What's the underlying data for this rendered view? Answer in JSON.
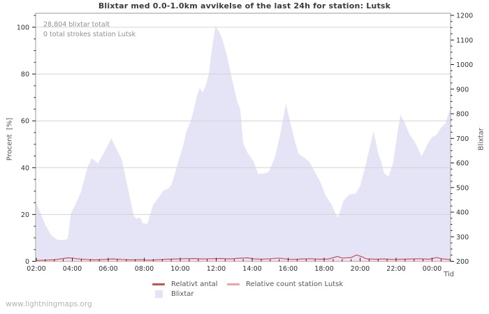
{
  "title": "Blixtar med 0.0-1.0km avvikelse of the last 24h for station: Lutsk",
  "annotations": {
    "total": "28,804 blixtar totalt",
    "station": "0 total strokes station Lutsk"
  },
  "watermark": "www.lightningmaps.org",
  "colors": {
    "background": "#ffffff",
    "area": "#e4e4f6",
    "relative_line": "#cb4f54",
    "station_line": "#f2a2a2",
    "grid": "#d4d4d4",
    "frame": "#9a9a9a",
    "tick": "#1a1a1a",
    "tick_label": "#2e2e2e",
    "muted_text": "#8f8f8f"
  },
  "legend": {
    "relative": {
      "label": "Relativt antal",
      "color": "#cb4f54"
    },
    "station": {
      "label": "Relative count station Lutsk",
      "color": "#f2a2a2"
    },
    "blixtar": {
      "label": "Blixtar",
      "color": "#e4e4f6"
    }
  },
  "chart_data": {
    "type": "area",
    "title": "Blixtar med 0.0-1.0km avvikelse of the last 24h for station: Lutsk",
    "xlabel": "Tid",
    "x_axis": {
      "label": "Tid",
      "start_time": "02:00",
      "range_minutes": [
        0,
        1380
      ],
      "major_tick_minutes": 120,
      "minor_tick_minutes": 30,
      "tick_labels": [
        "02:00",
        "04:00",
        "06:00",
        "08:00",
        "10:00",
        "12:00",
        "14:00",
        "16:00",
        "18:00",
        "20:00",
        "22:00",
        "00:00"
      ]
    },
    "y_left_axis": {
      "label": "Procent  [%]",
      "ticks": [
        0,
        20,
        40,
        60,
        80,
        100
      ],
      "minor_step": 5,
      "range": [
        0,
        106
      ]
    },
    "y_right_axis": {
      "label": "Blixtar",
      "ticks": [
        200,
        300,
        400,
        500,
        600,
        700,
        800,
        900,
        1000,
        1100,
        1200
      ],
      "minor_step": 25,
      "range": [
        200,
        1208
      ]
    },
    "grid": "horizontal at left-axis majors",
    "legend_position": "below plot",
    "series": [
      {
        "name": "Blixtar",
        "type": "area",
        "axis": "right",
        "color": "#e4e4f6",
        "points": [
          [
            0,
            438
          ],
          [
            10,
            408
          ],
          [
            30,
            348
          ],
          [
            50,
            305
          ],
          [
            70,
            288
          ],
          [
            90,
            286
          ],
          [
            105,
            291
          ],
          [
            115,
            395
          ],
          [
            130,
            430
          ],
          [
            150,
            486
          ],
          [
            170,
            580
          ],
          [
            185,
            620
          ],
          [
            205,
            598
          ],
          [
            225,
            640
          ],
          [
            250,
            700
          ],
          [
            270,
            650
          ],
          [
            285,
            614
          ],
          [
            305,
            500
          ],
          [
            325,
            385
          ],
          [
            335,
            372
          ],
          [
            345,
            380
          ],
          [
            355,
            355
          ],
          [
            370,
            352
          ],
          [
            390,
            430
          ],
          [
            410,
            463
          ],
          [
            425,
            489
          ],
          [
            440,
            495
          ],
          [
            450,
            510
          ],
          [
            460,
            546
          ],
          [
            475,
            612
          ],
          [
            490,
            670
          ],
          [
            500,
            727
          ],
          [
            515,
            770
          ],
          [
            525,
            815
          ],
          [
            535,
            870
          ],
          [
            545,
            905
          ],
          [
            555,
            886
          ],
          [
            565,
            915
          ],
          [
            575,
            962
          ],
          [
            585,
            1058
          ],
          [
            597,
            1155
          ],
          [
            610,
            1134
          ],
          [
            620,
            1105
          ],
          [
            635,
            1040
          ],
          [
            650,
            955
          ],
          [
            670,
            850
          ],
          [
            680,
            820
          ],
          [
            690,
            680
          ],
          [
            705,
            640
          ],
          [
            725,
            606
          ],
          [
            740,
            555
          ],
          [
            760,
            557
          ],
          [
            775,
            562
          ],
          [
            795,
            620
          ],
          [
            810,
            696
          ],
          [
            825,
            790
          ],
          [
            832,
            842
          ],
          [
            845,
            775
          ],
          [
            860,
            700
          ],
          [
            875,
            636
          ],
          [
            895,
            620
          ],
          [
            910,
            606
          ],
          [
            930,
            562
          ],
          [
            950,
            515
          ],
          [
            965,
            467
          ],
          [
            985,
            430
          ],
          [
            1005,
            377
          ],
          [
            1015,
            410
          ],
          [
            1025,
            448
          ],
          [
            1045,
            472
          ],
          [
            1065,
            476
          ],
          [
            1080,
            505
          ],
          [
            1100,
            600
          ],
          [
            1125,
            730
          ],
          [
            1140,
            640
          ],
          [
            1150,
            606
          ],
          [
            1160,
            558
          ],
          [
            1175,
            545
          ],
          [
            1190,
            600
          ],
          [
            1205,
            724
          ],
          [
            1215,
            796
          ],
          [
            1230,
            760
          ],
          [
            1245,
            715
          ],
          [
            1260,
            690
          ],
          [
            1275,
            653
          ],
          [
            1285,
            626
          ],
          [
            1305,
            677
          ],
          [
            1320,
            704
          ],
          [
            1335,
            715
          ],
          [
            1350,
            743
          ],
          [
            1365,
            762
          ],
          [
            1380,
            820
          ]
        ]
      },
      {
        "name": "Relativt antal",
        "type": "line",
        "axis": "left",
        "color": "#cb4f54",
        "points": [
          [
            0,
            0.4
          ],
          [
            30,
            0.5
          ],
          [
            60,
            0.7
          ],
          [
            90,
            1.2
          ],
          [
            105,
            1.5
          ],
          [
            120,
            1.4
          ],
          [
            135,
            1.1
          ],
          [
            165,
            0.8
          ],
          [
            195,
            0.6
          ],
          [
            225,
            0.8
          ],
          [
            255,
            1.0
          ],
          [
            285,
            0.8
          ],
          [
            315,
            0.6
          ],
          [
            345,
            0.7
          ],
          [
            375,
            0.5
          ],
          [
            405,
            0.7
          ],
          [
            435,
            0.9
          ],
          [
            465,
            1.0
          ],
          [
            495,
            1.1
          ],
          [
            525,
            1.2
          ],
          [
            555,
            1.0
          ],
          [
            585,
            1.1
          ],
          [
            615,
            1.2
          ],
          [
            645,
            1.0
          ],
          [
            675,
            1.3
          ],
          [
            705,
            1.5
          ],
          [
            720,
            1.1
          ],
          [
            750,
            0.9
          ],
          [
            780,
            1.1
          ],
          [
            810,
            1.4
          ],
          [
            825,
            1.1
          ],
          [
            855,
            0.8
          ],
          [
            885,
            1.0
          ],
          [
            915,
            1.1
          ],
          [
            945,
            0.9
          ],
          [
            975,
            1.0
          ],
          [
            1005,
            2.1
          ],
          [
            1020,
            1.4
          ],
          [
            1050,
            1.6
          ],
          [
            1068,
            2.7
          ],
          [
            1085,
            2.0
          ],
          [
            1100,
            1.1
          ],
          [
            1130,
            0.9
          ],
          [
            1160,
            1.0
          ],
          [
            1190,
            0.8
          ],
          [
            1220,
            0.9
          ],
          [
            1250,
            1.0
          ],
          [
            1280,
            1.1
          ],
          [
            1310,
            0.9
          ],
          [
            1335,
            1.6
          ],
          [
            1355,
            1.0
          ],
          [
            1380,
            0.8
          ]
        ]
      },
      {
        "name": "Relative count station Lutsk",
        "type": "line",
        "axis": "left",
        "color": "#f2a2a2",
        "points": [
          [
            0,
            0
          ],
          [
            1380,
            0
          ]
        ]
      }
    ]
  }
}
